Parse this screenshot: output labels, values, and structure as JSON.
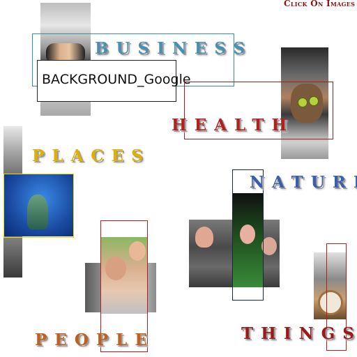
{
  "header": {
    "click_text": "Click On Images"
  },
  "tooltip": {
    "text": "BACKGROUND_Google"
  },
  "categories": [
    {
      "key": "business",
      "label": "BUSINESS",
      "color": "#4a8fb0",
      "frame_color": "#2f8f9a"
    },
    {
      "key": "health",
      "label": "HEALTH",
      "color": "#b0221f",
      "frame_color": "#9a2020"
    },
    {
      "key": "places",
      "label": "PLACES",
      "color": "#e0b000",
      "frame_color": "#e8e000"
    },
    {
      "key": "nature",
      "label": "NATURE",
      "color": "#3a5fa8",
      "frame_color": "#1a2a3a"
    },
    {
      "key": "people",
      "label": "PEOPLE",
      "color": "#c06020",
      "frame_color": "#b02020"
    },
    {
      "key": "things",
      "label": "THINGS",
      "color": "#9a1a1a",
      "frame_color": "#b02020"
    }
  ],
  "colors": {
    "header_text": "#8b1010"
  }
}
